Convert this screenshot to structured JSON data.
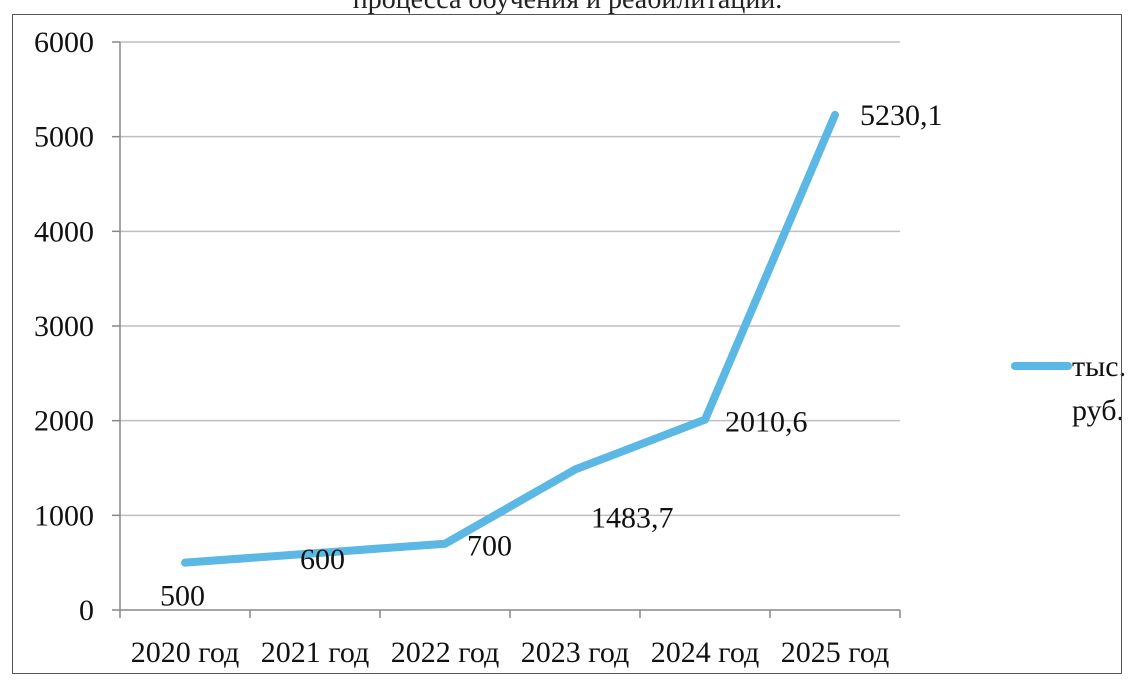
{
  "caption": "процесса обучения и реабилитации.",
  "chart_data": {
    "type": "line",
    "title": "",
    "xlabel": "",
    "ylabel": "",
    "categories": [
      "2020 год",
      "2021 год",
      "2022 год",
      "2023 год",
      "2024 год",
      "2025 год"
    ],
    "series": [
      {
        "name": "тыс. руб.",
        "values": [
          500,
          600,
          700,
          1483.7,
          2010.6,
          5230.1
        ],
        "labels": [
          "500",
          "600",
          "700",
          "1483,7",
          "2010,6",
          "5230,1"
        ],
        "color": "#5bb7e3"
      }
    ],
    "yticks": [
      "0",
      "1000",
      "2000",
      "3000",
      "4000",
      "5000",
      "6000"
    ],
    "ylim": [
      0,
      6000
    ],
    "grid": true,
    "legend_position": "right",
    "legend_lines": [
      "тыс.",
      "руб."
    ]
  }
}
